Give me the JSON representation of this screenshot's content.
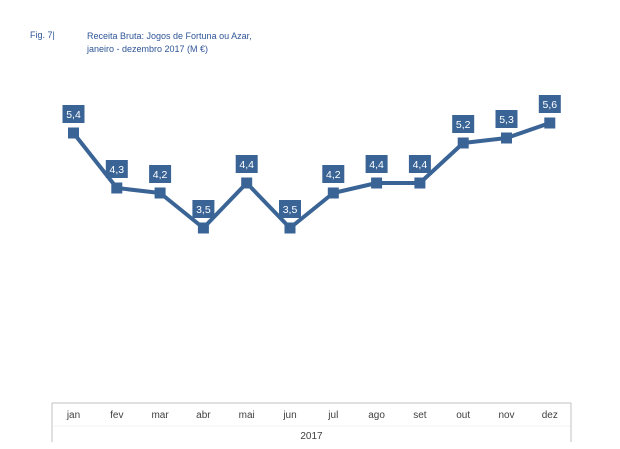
{
  "figure": {
    "label": "Fig. 7|",
    "title_line1": "Receita Bruta: Jogos de Fortuna ou Azar,",
    "title_line2": "janeiro - dezembro 2017 (M €)"
  },
  "colors": {
    "series": "#3b6496",
    "label_bg": "#3b6496",
    "label_text": "#ffffff",
    "axis_text": "#404040",
    "title": "#2e5597",
    "axis_lines": "#c0c0c0"
  },
  "chart_data": {
    "type": "line",
    "title": "Receita Bruta: Jogos de Fortuna ou Azar, janeiro - dezembro 2017 (M €)",
    "categories": [
      "jan",
      "fev",
      "mar",
      "abr",
      "mai",
      "jun",
      "jul",
      "ago",
      "set",
      "out",
      "nov",
      "dez"
    ],
    "category_group": "2017",
    "series": [
      {
        "values": [
          5.4,
          4.3,
          4.2,
          3.5,
          4.4,
          3.5,
          4.2,
          4.4,
          4.4,
          5.2,
          5.3,
          5.6
        ],
        "labels": [
          "5,4",
          "4,3",
          "4,2",
          "3,5",
          "4,4",
          "3,5",
          "4,2",
          "4,4",
          "4,4",
          "5,2",
          "5,3",
          "5,6"
        ]
      }
    ],
    "ylim": [
      0,
      7
    ],
    "grid": false,
    "legend": "none",
    "marker": "square",
    "data_labels": true
  }
}
